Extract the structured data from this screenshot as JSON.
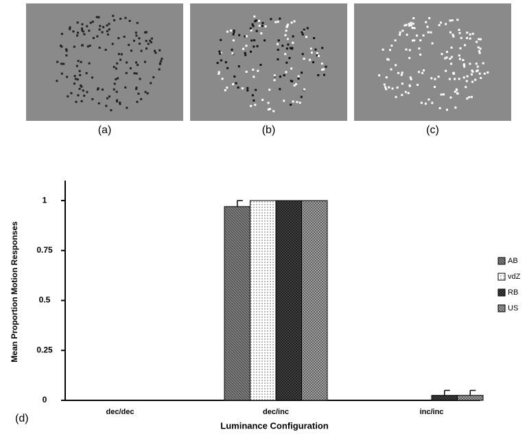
{
  "panels": [
    "(a)",
    "(b)",
    "(c)"
  ],
  "panel_label": "(d)",
  "chart_data": {
    "type": "bar",
    "y_label": "Mean Proportion Motion Responses",
    "x_label": "Luminance Configuration",
    "categories": [
      "dec/dec",
      "dec/inc",
      "inc/inc"
    ],
    "series": [
      {
        "name": "AB",
        "color": "#808080",
        "values": [
          0,
          0.97,
          0
        ],
        "errors": [
          null,
          0.03,
          null
        ]
      },
      {
        "name": "vdZ",
        "color": "#ffffff",
        "values": [
          0,
          1,
          0
        ],
        "errors": [
          null,
          null,
          null
        ]
      },
      {
        "name": "RB",
        "color": "#505050",
        "values": [
          0,
          1,
          0.025
        ],
        "errors": [
          null,
          null,
          0.025
        ]
      },
      {
        "name": "US",
        "color": "#b0b0b0",
        "values": [
          0,
          1,
          0.025
        ],
        "errors": [
          null,
          null,
          0.025
        ]
      }
    ],
    "ylim": [
      0,
      1.1
    ],
    "yticks": [
      0,
      0.25,
      0.5,
      0.75,
      1
    ]
  }
}
